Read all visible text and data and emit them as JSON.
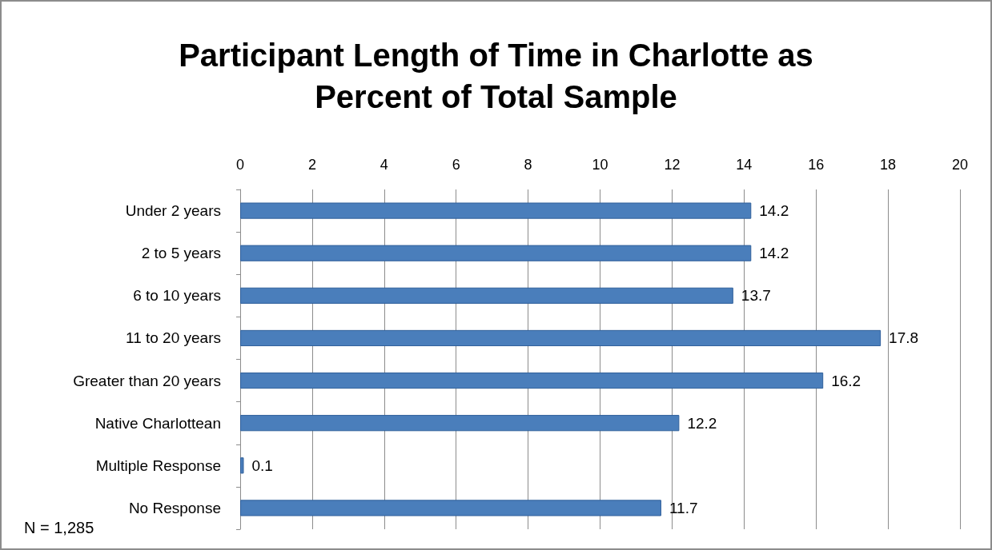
{
  "chart_data": {
    "type": "bar",
    "orientation": "horizontal",
    "title": "Participant Length of Time in Charlotte as\nPercent of Total Sample",
    "categories": [
      "Under 2 years",
      "2 to 5 years",
      "6 to 10 years",
      "11 to 20 years",
      "Greater than 20 years",
      "Native Charlottean",
      "Multiple Response",
      "No Response"
    ],
    "values": [
      14.2,
      14.2,
      13.7,
      17.8,
      16.2,
      12.2,
      0.1,
      11.7
    ],
    "color": "#4a7ebb",
    "xlim": [
      0,
      20
    ],
    "xticks": [
      0,
      2,
      4,
      6,
      8,
      10,
      12,
      14,
      16,
      18,
      20
    ],
    "grid": "x",
    "data_labels": true,
    "annotations": [
      "N = 1,285"
    ]
  }
}
